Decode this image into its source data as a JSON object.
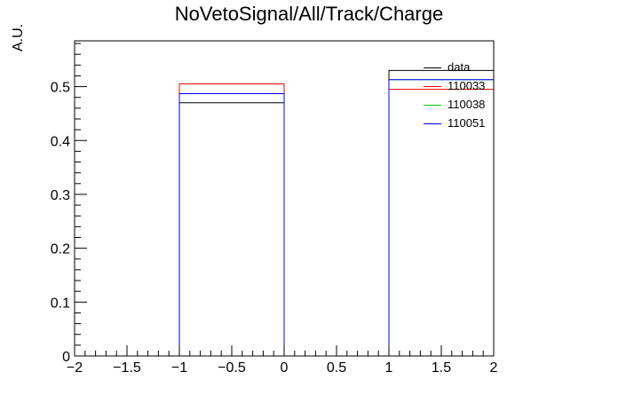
{
  "chart_data": {
    "type": "bar",
    "title": "NoVetoSignal/All/Track/Charge",
    "xlabel": "",
    "ylabel": "A.U.",
    "xlim": [
      -2,
      2
    ],
    "ylim": [
      0,
      0.585
    ],
    "bin_width": 1,
    "bins": [
      -2,
      -1,
      0,
      1
    ],
    "x_ticks": [
      -2,
      -1.5,
      -1,
      -0.5,
      0,
      0.5,
      1,
      1.5,
      2
    ],
    "x_tick_labels": [
      "−2",
      "−1.5",
      "−1",
      "−0.5",
      "0",
      "0.5",
      "1",
      "1.5",
      "2"
    ],
    "y_ticks": [
      0,
      0.1,
      0.2,
      0.3,
      0.4,
      0.5
    ],
    "y_tick_labels": [
      "0",
      "0.1",
      "0.2",
      "0.3",
      "0.4",
      "0.5"
    ],
    "grid": false,
    "legend_position": "top-right",
    "series": [
      {
        "name": "data",
        "color": "#000000",
        "values": [
          0,
          0.47,
          0,
          0.53
        ]
      },
      {
        "name": "110033",
        "color": "#ff0000",
        "values": [
          0,
          0.505,
          0,
          0.495
        ]
      },
      {
        "name": "110038",
        "color": "#00cc00",
        "values": [
          0,
          0.487,
          0,
          0.513
        ]
      },
      {
        "name": "110051",
        "color": "#0000ff",
        "values": [
          0,
          0.487,
          0,
          0.513
        ]
      }
    ]
  }
}
